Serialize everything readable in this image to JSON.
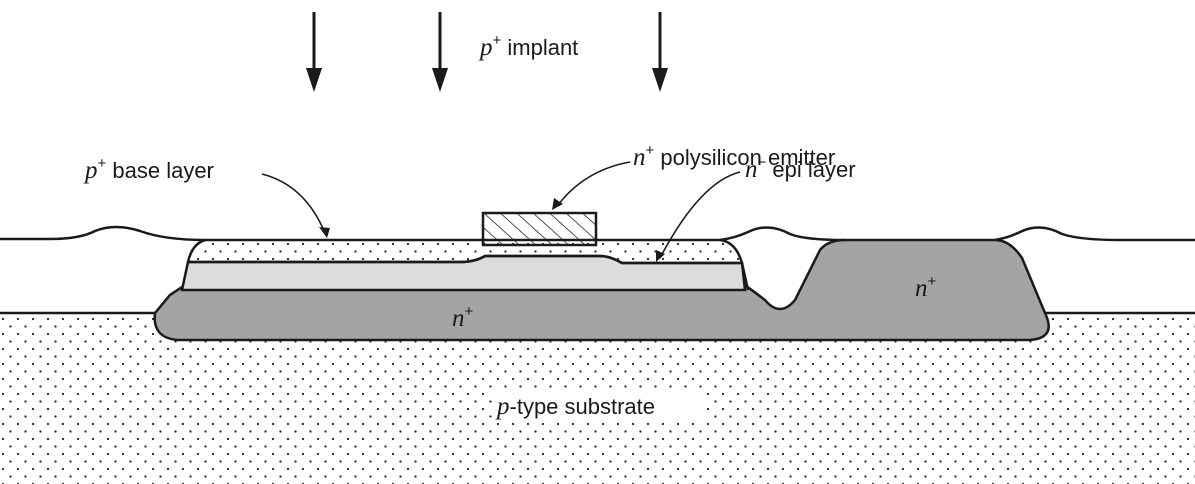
{
  "colors": {
    "outline": "#1a1a1a",
    "n_plus": "#a4a4a4",
    "n_minus_epi": "#dcdcdc",
    "dots": "#2a2a2a",
    "background": "#ffffff"
  },
  "labels": {
    "implant": {
      "prefix": "p",
      "sup": "+",
      "text": " implant"
    },
    "emitter": {
      "prefix": "n",
      "sup": "+",
      "text": " polysilicon emitter"
    },
    "base": {
      "prefix": "p",
      "sup": "+",
      "text": " base layer"
    },
    "epi": {
      "prefix": "n",
      "sup": "−",
      "text": " epi layer"
    },
    "buried": {
      "prefix": "n",
      "sup": "+"
    },
    "collector": {
      "prefix": "n",
      "sup": "+"
    },
    "substrate": {
      "prefix": "p",
      "text": "-type substrate"
    }
  },
  "icons": {
    "implant_arrows": [
      "down-arrow-icon",
      "down-arrow-icon",
      "down-arrow-icon"
    ]
  }
}
